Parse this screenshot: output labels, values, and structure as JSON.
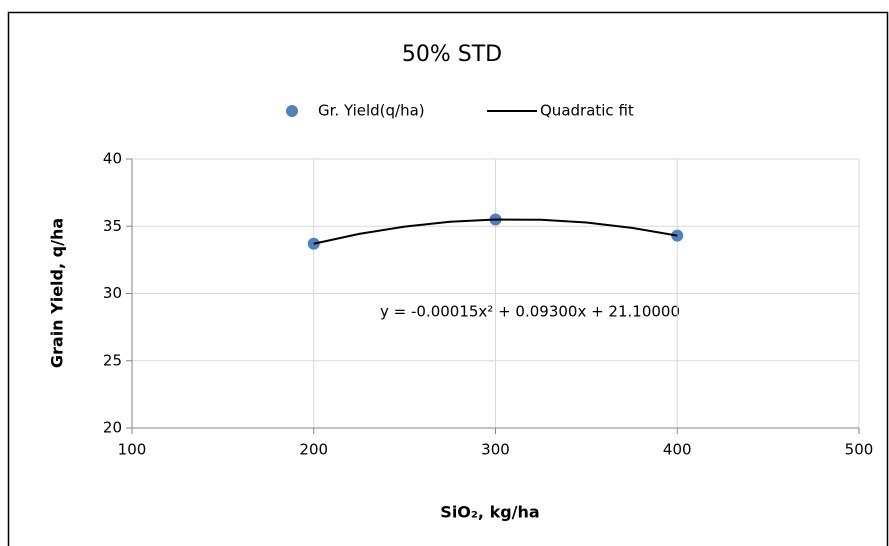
{
  "chart_data": {
    "type": "scatter",
    "title": "50% STD",
    "x_label": "SiO₂, kg/ha",
    "y_label": "Grain Yield, q/ha",
    "annotation": "y = -0.00015x² + 0.09300x + 21.10000",
    "xlim": [
      100,
      500
    ],
    "xticks": [
      100,
      200,
      300,
      400,
      500
    ],
    "ylim": [
      20,
      40
    ],
    "yticks": [
      20,
      25,
      30,
      35,
      40
    ],
    "grid": true,
    "legend": "top",
    "series": [
      {
        "name": "Gr. Yield(q/ha)",
        "color": "#4f81bd",
        "mark": "marker",
        "x": [
          200,
          300,
          400
        ],
        "values": [
          33.7,
          35.5,
          34.3
        ]
      },
      {
        "name": "Quadratic fit",
        "color": "#000000",
        "mark": "line",
        "x": [
          200,
          225,
          250,
          275,
          300,
          325,
          350,
          375,
          400
        ],
        "values": [
          33.7,
          34.43125,
          34.975,
          35.33125,
          35.5,
          35.48125,
          35.275,
          34.88125,
          34.3
        ]
      }
    ]
  }
}
